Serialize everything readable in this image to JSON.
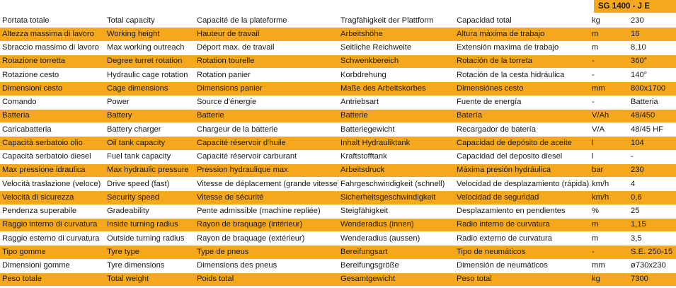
{
  "model": "SG 1400 - J E",
  "rows": [
    {
      "it": "Portata totale",
      "en": "Total capacity",
      "fr": "Capacité de la plateforme",
      "de": "Tragfähigkeit der Plattform",
      "es": "Capacidad total",
      "unit": "kg",
      "value": "230",
      "band": "white"
    },
    {
      "it": "Altezza massima di lavoro",
      "en": "Working height",
      "fr": "Hauteur de travail",
      "de": "Arbeitshöhe",
      "es": "Altura máxima de trabajo",
      "unit": "m",
      "value": "16",
      "band": "orange"
    },
    {
      "it": "Sbraccio massimo di lavoro",
      "en": "Max working outreach",
      "fr": "Déport max. de travail",
      "de": "Seitliche Reichweite",
      "es": "Extensión maxima de trabajo",
      "unit": "m",
      "value": "8,10",
      "band": "white"
    },
    {
      "it": "Rotazione torretta",
      "en": "Degree turret rotation",
      "fr": "Rotation tourelle",
      "de": "Schwenkbereich",
      "es": "Rotación de la torreta",
      "unit": "-",
      "value": "360°",
      "band": "orange"
    },
    {
      "it": "Rotazione cesto",
      "en": "Hydraulic cage rotation",
      "fr": "Rotation panier",
      "de": "Korbdrehung",
      "es": "Rotación de la cesta hidráulica",
      "unit": "-",
      "value": "140°",
      "band": "white"
    },
    {
      "it": "Dimensioni cesto",
      "en": "Cage dimensions",
      "fr": "Dimensions panier",
      "de": "Maße des Arbeitskorbes",
      "es": "Dimensiónes cesto",
      "unit": "mm",
      "value": "800x1700",
      "band": "orange"
    },
    {
      "it": "Comando",
      "en": "Power",
      "fr": "Source d'énergie",
      "de": "Antriebsart",
      "es": "Fuente de energía",
      "unit": "-",
      "value": "Batteria",
      "band": "white"
    },
    {
      "it": "Batteria",
      "en": "Battery",
      "fr": "Batterie",
      "de": "Batterie",
      "es": "Batería",
      "unit": "V/Ah",
      "value": "48/450",
      "band": "orange"
    },
    {
      "it": "Caricabatteria",
      "en": "Battery charger",
      "fr": "Chargeur de la batterie",
      "de": "Batteriegewicht",
      "es": "Recargador de batería",
      "unit": "V/A",
      "value": "48/45 HF",
      "band": "white"
    },
    {
      "it": "Capacità serbatoio olio",
      "en": "Oil tank capacity",
      "fr": "Capacité réservoir d'huile",
      "de": "Inhalt Hydrauliktank",
      "es": "Capacidad de depósito de aceite",
      "unit": "l",
      "value": "104",
      "band": "orange"
    },
    {
      "it": "Capacità serbatoio diesel",
      "en": "Fuel tank capacity",
      "fr": "Capacité réservoir carburant",
      "de": "Kraftstofftank",
      "es": "Capacidad del deposito diesel",
      "unit": "l",
      "value": "-",
      "band": "white"
    },
    {
      "it": "Max pressione idraulica",
      "en": "Max hydraulic pressure",
      "fr": "Pression hydraulique max",
      "de": "Arbeitsdruck",
      "es": "Máxima presión hydráulica",
      "unit": "bar",
      "value": "230",
      "band": "orange"
    },
    {
      "it": "Velocità traslazione (veloce)",
      "en": "Drive speed (fast)",
      "fr": "Vitesse de déplacement (grande vitesse)",
      "de": "Fahrgeschwindigkeit (schnell)",
      "es": "Velocidad de desplazamiento (rápida)",
      "unit": "km/h",
      "value": "4",
      "band": "white"
    },
    {
      "it": "Velocità di sicurezza",
      "en": "Security speed",
      "fr": "Vitesse de sécurité",
      "de": "Sicherheitsgeschwindigkeit",
      "es": "Velocidad de seguridad",
      "unit": "km/h",
      "value": "0,6",
      "band": "orange"
    },
    {
      "it": "Pendenza superabile",
      "en": "Gradeability",
      "fr": "Pente admissible (machine repliée)",
      "de": "Steigfähigkeit",
      "es": "Desplazamiento en pendientes",
      "unit": "%",
      "value": "25",
      "band": "white"
    },
    {
      "it": "Raggio interno di curvatura",
      "en": "Inside turning radius",
      "fr": "Rayon de braquage (intérieur)",
      "de": "Wenderadius (innen)",
      "es": "Radio interno de curvatura",
      "unit": "m",
      "value": "1,15",
      "band": "orange"
    },
    {
      "it": "Raggio esterno di curvatura",
      "en": "Outside turning radius",
      "fr": "Rayon de braquage (extérieur)",
      "de": "Wenderadius (aussen)",
      "es": "Radio externo de curvatura",
      "unit": "m",
      "value": "3,5",
      "band": "white"
    },
    {
      "it": "Tipo gomme",
      "en": "Tyre type",
      "fr": "Type de pneus",
      "de": "Bereifungsart",
      "es": "Tipo de neumáticos",
      "unit": "-",
      "value": "S.E. 250-15",
      "band": "orange"
    },
    {
      "it": "Dimensioni gomme",
      "en": "Tyre dimensions",
      "fr": "Dimensions des pneus",
      "de": "Bereifungsgröße",
      "es": "Dimensión de neumáticos",
      "unit": "mm",
      "value": "ø730x230",
      "band": "white"
    },
    {
      "it": "Peso totale",
      "en": "Total weight",
      "fr": "Poids total",
      "de": "Gesamtgewicht",
      "es": "Peso total",
      "unit": "kg",
      "value": "7300",
      "band": "orange"
    }
  ]
}
